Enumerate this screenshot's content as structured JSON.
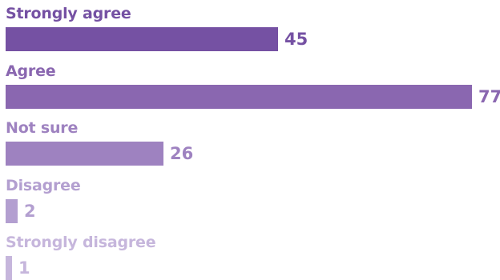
{
  "chart_data": {
    "type": "bar",
    "orientation": "horizontal",
    "categories": [
      "Strongly agree",
      "Agree",
      "Not sure",
      "Disagree",
      "Strongly disagree"
    ],
    "values": [
      45,
      77,
      26,
      2,
      1
    ],
    "value_labels": [
      "45",
      "77",
      "26",
      "2",
      "1"
    ],
    "title": "",
    "xlabel": "",
    "ylabel": "",
    "xlim": [
      0,
      77
    ],
    "grid": false,
    "legend": "none",
    "colors": {
      "bars": [
        "#7551a3",
        "#8a67b0",
        "#9e82c0",
        "#b39fd0",
        "#c6b6dc"
      ],
      "labels": [
        "#7551a3",
        "#8a67b0",
        "#9e82c0",
        "#b39fd0",
        "#c6b6dc"
      ]
    }
  }
}
